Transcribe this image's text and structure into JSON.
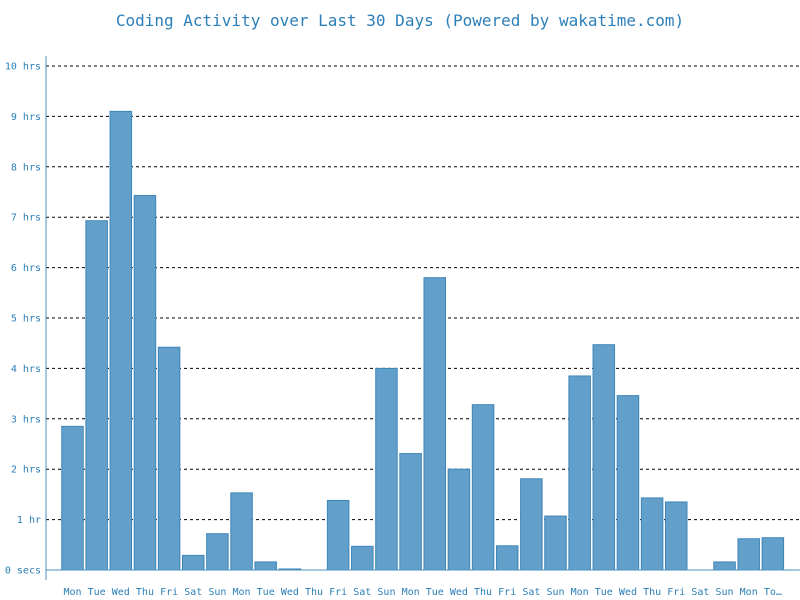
{
  "chart_data": {
    "type": "bar",
    "title": "Coding Activity over Last 30 Days (Powered by wakatime.com)",
    "xlabel": "",
    "ylabel": "",
    "ylim": [
      0,
      10
    ],
    "y_ticks": [
      {
        "value": 0,
        "label": "0 secs"
      },
      {
        "value": 1,
        "label": "1 hr"
      },
      {
        "value": 2,
        "label": "2 hrs"
      },
      {
        "value": 3,
        "label": "3 hrs"
      },
      {
        "value": 4,
        "label": "4 hrs"
      },
      {
        "value": 5,
        "label": "5 hrs"
      },
      {
        "value": 6,
        "label": "6 hrs"
      },
      {
        "value": 7,
        "label": "7 hrs"
      },
      {
        "value": 8,
        "label": "8 hrs"
      },
      {
        "value": 9,
        "label": "9 hrs"
      },
      {
        "value": 10,
        "label": "10 hrs"
      }
    ],
    "grid": true,
    "categories": [
      "Mon",
      "Tue",
      "Wed",
      "Thu",
      "Fri",
      "Sat",
      "Sun",
      "Mon",
      "Tue",
      "Wed",
      "Thu",
      "Fri",
      "Sat",
      "Sun",
      "Mon",
      "Tue",
      "Wed",
      "Thu",
      "Fri",
      "Sat",
      "Sun",
      "Mon",
      "Tue",
      "Wed",
      "Thu",
      "Fri",
      "Sat",
      "Sun",
      "Mon",
      "To…"
    ],
    "values": [
      2.85,
      6.93,
      9.1,
      7.43,
      4.42,
      0.29,
      0.72,
      1.53,
      0.16,
      0.02,
      0.0,
      1.38,
      0.47,
      4.0,
      2.31,
      5.8,
      2.0,
      3.28,
      0.48,
      1.81,
      1.07,
      3.85,
      4.47,
      3.46,
      1.43,
      1.35,
      0.0,
      0.16,
      0.62,
      0.64
    ],
    "colors": {
      "bar": "#62a0cb",
      "bar_edge": "#3d85b8",
      "text": "#2c7fb8",
      "axis": "#4a90c2",
      "grid": "#000000"
    }
  }
}
